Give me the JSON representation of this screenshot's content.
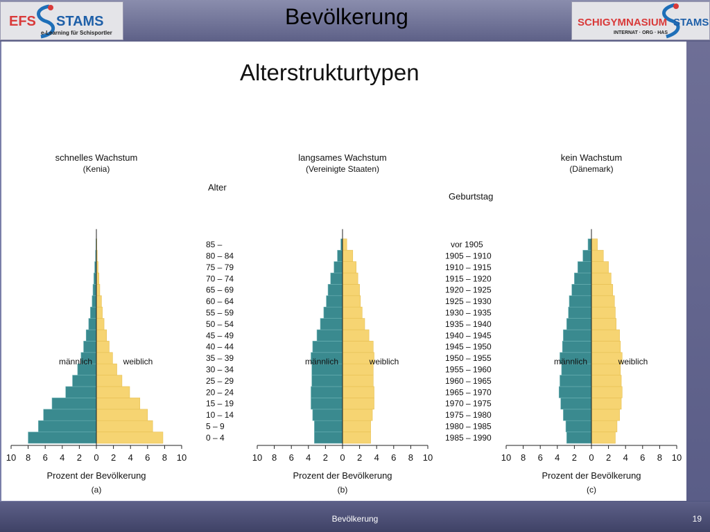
{
  "header": {
    "title": "Bevölkerung",
    "logo_left": {
      "line1": "EFS",
      "line2": "STAMS",
      "tagline": "e-Learning für Schisportler"
    },
    "logo_right": {
      "line1": "SCHIGYMNASIUM",
      "line2": "STAMS",
      "tagline": "INTERNAT · ORG · HAS"
    }
  },
  "slide": {
    "title": "Alterstrukturtypen"
  },
  "footer": {
    "text": "Bevölkerung",
    "page": "19"
  },
  "colors": {
    "male": "#3a8a8f",
    "female": "#f6d472",
    "male_light": "#6fb3b6"
  },
  "chart_data": [
    {
      "type": "bar",
      "orientation": "horizontal-pyramid",
      "title": "schnelles Wachstum",
      "subtitle": "(Kenia)",
      "panel": "(a)",
      "xlabel": "Prozent der Bevölkerung",
      "xlim": [
        -10,
        10
      ],
      "x_ticks": [
        "10",
        "8",
        "6",
        "4",
        "2",
        "0",
        "2",
        "4",
        "6",
        "8",
        "10"
      ],
      "label_male": "männlich",
      "label_female": "weiblich",
      "categories": [
        "0 – 4",
        "5 – 9",
        "10 – 14",
        "15 – 19",
        "20 – 24",
        "25 – 29",
        "30 – 34",
        "35 – 39",
        "40 – 44",
        "45 – 49",
        "50 – 54",
        "55 – 59",
        "60 – 64",
        "65 – 69",
        "70 – 74",
        "75 – 79",
        "80 – 84",
        "85 –"
      ],
      "series": [
        {
          "name": "männlich",
          "values": [
            8.0,
            6.8,
            6.2,
            5.2,
            3.6,
            2.8,
            2.2,
            1.8,
            1.5,
            1.2,
            0.9,
            0.7,
            0.5,
            0.4,
            0.3,
            0.2,
            0.1,
            0.05
          ]
        },
        {
          "name": "weiblich",
          "values": [
            7.8,
            6.6,
            6.0,
            5.1,
            3.9,
            3.0,
            2.4,
            1.9,
            1.5,
            1.2,
            0.9,
            0.7,
            0.6,
            0.4,
            0.3,
            0.2,
            0.1,
            0.05
          ]
        }
      ]
    },
    {
      "type": "bar",
      "orientation": "horizontal-pyramid",
      "title": "langsames Wachstum",
      "subtitle": "(Vereinigte Staaten)",
      "panel": "(b)",
      "xlabel": "Prozent der Bevölkerung",
      "xlim": [
        -10,
        10
      ],
      "x_ticks": [
        "10",
        "8",
        "6",
        "4",
        "2",
        "0",
        "2",
        "4",
        "6",
        "8",
        "10"
      ],
      "label_male": "männlich",
      "label_female": "weiblich",
      "categories": [
        "0 – 4",
        "5 – 9",
        "10 – 14",
        "15 – 19",
        "20 – 24",
        "25 – 29",
        "30 – 34",
        "35 – 39",
        "40 – 44",
        "45 – 49",
        "50 – 54",
        "55 – 59",
        "60 – 64",
        "65 – 69",
        "70 – 74",
        "75 – 79",
        "80 – 84",
        "85 –"
      ],
      "series": [
        {
          "name": "männlich",
          "values": [
            3.3,
            3.3,
            3.5,
            3.7,
            3.7,
            3.6,
            3.6,
            3.7,
            3.5,
            3.0,
            2.6,
            2.2,
            1.9,
            1.7,
            1.4,
            1.0,
            0.6,
            0.2
          ]
        },
        {
          "name": "weiblich",
          "values": [
            3.3,
            3.3,
            3.5,
            3.7,
            3.7,
            3.6,
            3.6,
            3.7,
            3.6,
            3.1,
            2.6,
            2.3,
            2.1,
            2.0,
            1.8,
            1.6,
            1.2,
            0.5
          ]
        }
      ]
    },
    {
      "type": "bar",
      "orientation": "horizontal-pyramid",
      "title": "kein Wachstum",
      "subtitle": "(Dänemark)",
      "panel": "(c)",
      "xlabel": "Prozent der Bevölkerung",
      "xlim": [
        -10,
        10
      ],
      "x_ticks": [
        "10",
        "8",
        "6",
        "4",
        "2",
        "0",
        "2",
        "4",
        "6",
        "8",
        "10"
      ],
      "label_male": "männlich",
      "label_female": "weiblich",
      "categories": [
        "0 – 4",
        "5 – 9",
        "10 – 14",
        "15 – 19",
        "20 – 24",
        "25 – 29",
        "30 – 34",
        "35 – 39",
        "40 – 44",
        "45 – 49",
        "50 – 54",
        "55 – 59",
        "60 – 64",
        "65 – 69",
        "70 – 74",
        "75 – 79",
        "80 – 84",
        "85 –"
      ],
      "series": [
        {
          "name": "männlich",
          "values": [
            2.9,
            3.0,
            3.3,
            3.6,
            3.8,
            3.7,
            3.5,
            3.7,
            3.4,
            3.3,
            2.9,
            2.7,
            2.6,
            2.3,
            2.0,
            1.6,
            1.0,
            0.4
          ]
        },
        {
          "name": "weiblich",
          "values": [
            2.8,
            3.0,
            3.3,
            3.5,
            3.6,
            3.5,
            3.4,
            3.6,
            3.4,
            3.3,
            2.9,
            2.8,
            2.7,
            2.5,
            2.3,
            2.0,
            1.4,
            0.7
          ]
        }
      ]
    }
  ],
  "age_axis": {
    "title": "Alter",
    "labels": [
      "85 –",
      "80 – 84",
      "75 – 79",
      "70 – 74",
      "65 – 69",
      "60 – 64",
      "55 – 59",
      "50 – 54",
      "45 – 49",
      "40 – 44",
      "35 – 39",
      "30 – 34",
      "25 – 29",
      "20 – 24",
      "15 – 19",
      "10 – 14",
      "5 – 9",
      "0 – 4"
    ]
  },
  "birth_axis": {
    "title": "Geburtstag",
    "labels": [
      "vor 1905",
      "1905 – 1910",
      "1910 – 1915",
      "1915 – 1920",
      "1920 – 1925",
      "1925 – 1930",
      "1930 – 1935",
      "1935 – 1940",
      "1940 – 1945",
      "1945 – 1950",
      "1950 – 1955",
      "1955 – 1960",
      "1960 – 1965",
      "1965 – 1970",
      "1970 – 1975",
      "1975 – 1980",
      "1980 – 1985",
      "1985 – 1990"
    ]
  }
}
